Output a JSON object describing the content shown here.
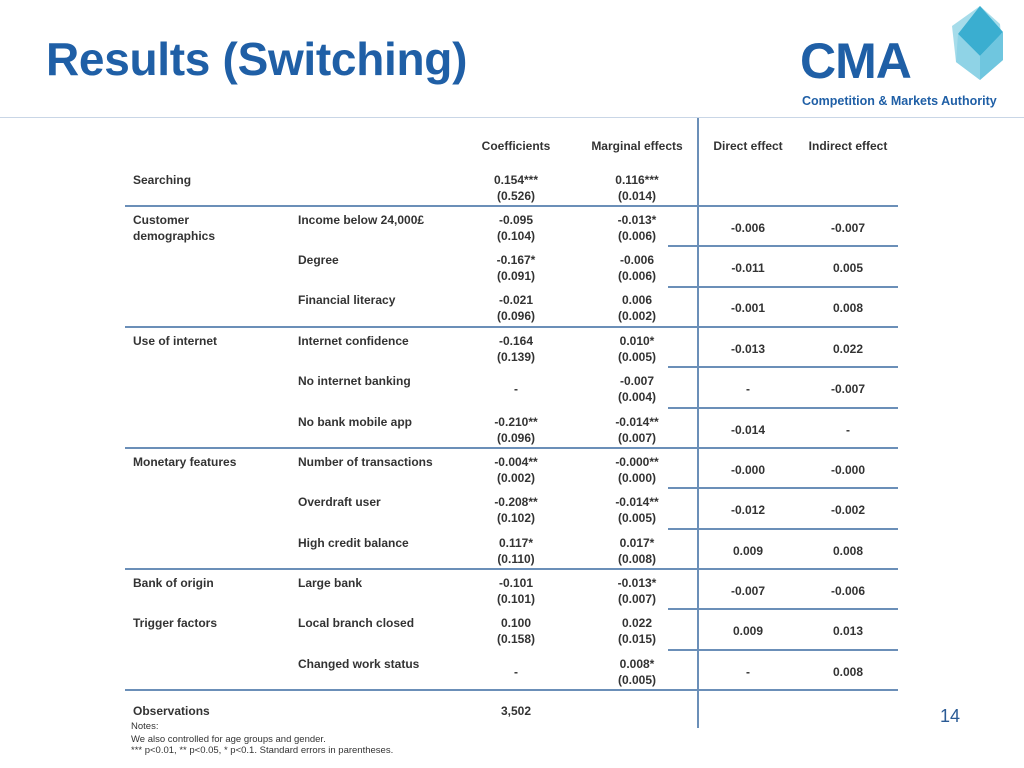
{
  "title": "Results (Switching)",
  "logo": {
    "main": "CMA",
    "subtitle": "Competition & Markets Authority"
  },
  "columns": [
    "Coefficients",
    "Marginal effects",
    "Direct effect",
    "Indirect effect"
  ],
  "rows": [
    {
      "group": "Searching",
      "variable": "",
      "coef": "0.154***",
      "coef_se": "(0.526)",
      "marg": "0.116***",
      "marg_se": "(0.014)",
      "direct": "",
      "indirect": ""
    },
    {
      "group": "Customer\ndemographics",
      "variable": "Income below 24,000£",
      "coef": "-0.095",
      "coef_se": "(0.104)",
      "marg": "-0.013*",
      "marg_se": "(0.006)",
      "direct": "-0.006",
      "indirect": "-0.007"
    },
    {
      "group": "",
      "variable": "Degree",
      "coef": "-0.167*",
      "coef_se": "(0.091)",
      "marg": "-0.006",
      "marg_se": "(0.006)",
      "direct": "-0.011",
      "indirect": "0.005"
    },
    {
      "group": "",
      "variable": "Financial literacy",
      "coef": "-0.021",
      "coef_se": "(0.096)",
      "marg": "0.006",
      "marg_se": "(0.002)",
      "direct": "-0.001",
      "indirect": "0.008"
    },
    {
      "group": "Use of internet",
      "variable": "Internet confidence",
      "coef": "-0.164",
      "coef_se": "(0.139)",
      "marg": "0.010*",
      "marg_se": "(0.005)",
      "direct": "-0.013",
      "indirect": "0.022"
    },
    {
      "group": "",
      "variable": "No internet banking",
      "coef": "-",
      "coef_se": "",
      "marg": "-0.007",
      "marg_se": "(0.004)",
      "direct": "-",
      "indirect": "-0.007"
    },
    {
      "group": "",
      "variable": "No bank mobile app",
      "coef": "-0.210**",
      "coef_se": "(0.096)",
      "marg": "-0.014**",
      "marg_se": "(0.007)",
      "direct": "-0.014",
      "indirect": "-"
    },
    {
      "group": "Monetary features",
      "variable": "Number of transactions",
      "coef": "-0.004**",
      "coef_se": "(0.002)",
      "marg": "-0.000**",
      "marg_se": "(0.000)",
      "direct": "-0.000",
      "indirect": "-0.000"
    },
    {
      "group": "",
      "variable": "Overdraft user",
      "coef": "-0.208**",
      "coef_se": "(0.102)",
      "marg": "-0.014**",
      "marg_se": "(0.005)",
      "direct": "-0.012",
      "indirect": "-0.002"
    },
    {
      "group": "",
      "variable": "High credit balance",
      "coef": "0.117*",
      "coef_se": "(0.110)",
      "marg": "0.017*",
      "marg_se": "(0.008)",
      "direct": "0.009",
      "indirect": "0.008"
    },
    {
      "group": "Bank of origin",
      "variable": "Large bank",
      "coef": "-0.101",
      "coef_se": "(0.101)",
      "marg": "-0.013*",
      "marg_se": "(0.007)",
      "direct": "-0.007",
      "indirect": "-0.006"
    },
    {
      "group": "Trigger factors",
      "variable": "Local branch closed",
      "coef": "0.100",
      "coef_se": "(0.158)",
      "marg": "0.022",
      "marg_se": "(0.015)",
      "direct": "0.009",
      "indirect": "0.013"
    },
    {
      "group": "",
      "variable": "Changed work status",
      "coef": "-",
      "coef_se": "",
      "marg": "0.008*",
      "marg_se": "(0.005)",
      "direct": "-",
      "indirect": "0.008"
    }
  ],
  "observations": {
    "label": "Observations",
    "value": "3,502"
  },
  "notes": [
    "Notes:",
    "We also controlled for age groups and gender.",
    "*** p<0.01, ** p<0.05, * p<0.1. Standard errors in parentheses."
  ],
  "page_number": "14",
  "colors": {
    "brand_blue": "#1f5fa6",
    "logo_light": "#8fd3e6",
    "rule": "#6b8fb8"
  }
}
